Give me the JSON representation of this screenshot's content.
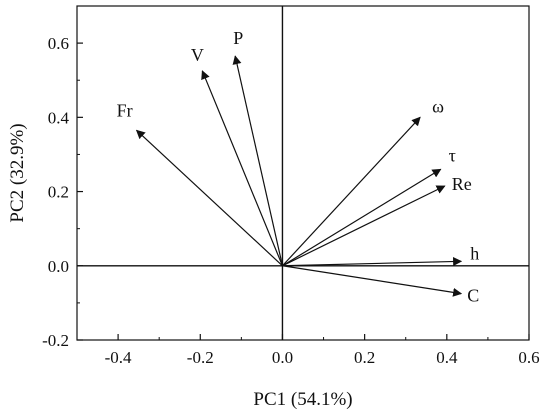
{
  "chart_data": {
    "type": "scatter",
    "subtype": "biplot",
    "xlabel": "PC1 (54.1%)",
    "ylabel": "PC2 (32.9%)",
    "xlim": [
      -0.5,
      0.6
    ],
    "ylim": [
      -0.2,
      0.7
    ],
    "x_ticks": [
      -0.4,
      -0.2,
      0.0,
      0.2,
      0.4,
      0.6
    ],
    "x_tick_labels": [
      "-0.4",
      "-0.2",
      "0.0",
      "0.2",
      "0.4",
      "0.6"
    ],
    "y_ticks": [
      -0.2,
      0.0,
      0.2,
      0.4,
      0.6
    ],
    "y_tick_labels": [
      "-0.2",
      "0.0",
      "0.2",
      "0.4",
      "0.6"
    ],
    "grid": false,
    "reference_lines": {
      "x": 0,
      "y": 0
    },
    "arrows": [
      {
        "label": "V",
        "x": -0.195,
        "y": 0.525
      },
      {
        "label": "P",
        "x": -0.115,
        "y": 0.565
      },
      {
        "label": "Fr",
        "x": -0.355,
        "y": 0.365
      },
      {
        "label": "ω",
        "x": 0.335,
        "y": 0.4
      },
      {
        "label": "τ",
        "x": 0.385,
        "y": 0.26
      },
      {
        "label": "Re",
        "x": 0.395,
        "y": 0.215
      },
      {
        "label": "h",
        "x": 0.435,
        "y": 0.012
      },
      {
        "label": "C",
        "x": 0.435,
        "y": -0.075
      }
    ]
  }
}
